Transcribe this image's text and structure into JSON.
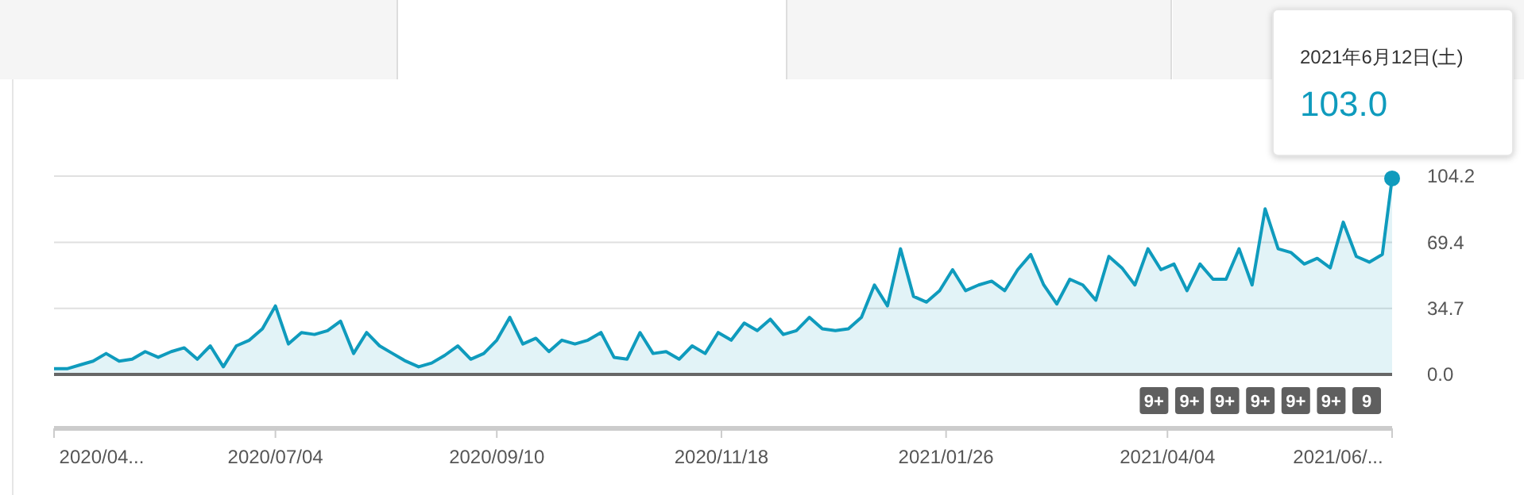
{
  "chart_data": {
    "type": "area",
    "x": [
      "2020-04-27",
      "2020-05-01",
      "2020-05-05",
      "2020-05-09",
      "2020-05-13",
      "2020-05-17",
      "2020-05-21",
      "2020-05-25",
      "2020-05-29",
      "2020-06-02",
      "2020-06-06",
      "2020-06-10",
      "2020-06-14",
      "2020-06-18",
      "2020-06-22",
      "2020-06-26",
      "2020-06-30",
      "2020-07-04",
      "2020-07-08",
      "2020-07-12",
      "2020-07-16",
      "2020-07-20",
      "2020-07-24",
      "2020-07-28",
      "2020-08-01",
      "2020-08-05",
      "2020-08-09",
      "2020-08-13",
      "2020-08-17",
      "2020-08-21",
      "2020-08-25",
      "2020-08-29",
      "2020-09-02",
      "2020-09-06",
      "2020-09-10",
      "2020-09-14",
      "2020-09-18",
      "2020-09-22",
      "2020-09-26",
      "2020-09-30",
      "2020-10-04",
      "2020-10-08",
      "2020-10-12",
      "2020-10-16",
      "2020-10-20",
      "2020-10-24",
      "2020-10-28",
      "2020-11-01",
      "2020-11-05",
      "2020-11-09",
      "2020-11-13",
      "2020-11-17",
      "2020-11-21",
      "2020-11-25",
      "2020-11-29",
      "2020-12-03",
      "2020-12-07",
      "2020-12-11",
      "2020-12-15",
      "2020-12-19",
      "2020-12-23",
      "2020-12-27",
      "2020-12-31",
      "2021-01-04",
      "2021-01-08",
      "2021-01-12",
      "2021-01-16",
      "2021-01-20",
      "2021-01-24",
      "2021-01-28",
      "2021-02-01",
      "2021-02-05",
      "2021-02-09",
      "2021-02-13",
      "2021-02-17",
      "2021-02-21",
      "2021-02-25",
      "2021-03-01",
      "2021-03-05",
      "2021-03-09",
      "2021-03-13",
      "2021-03-17",
      "2021-03-21",
      "2021-03-25",
      "2021-03-29",
      "2021-04-02",
      "2021-04-06",
      "2021-04-10",
      "2021-04-14",
      "2021-04-18",
      "2021-04-22",
      "2021-04-26",
      "2021-04-30",
      "2021-05-04",
      "2021-05-08",
      "2021-05-12",
      "2021-05-16",
      "2021-05-20",
      "2021-05-24",
      "2021-05-28",
      "2021-06-01",
      "2021-06-05",
      "2021-06-09",
      "2021-06-12"
    ],
    "series": [
      {
        "color": "#0f9bbd",
        "values": [
          3,
          3,
          5,
          7,
          11,
          7,
          8,
          12,
          9,
          12,
          14,
          8,
          15,
          4,
          15,
          18,
          24,
          36,
          16,
          22,
          21,
          23,
          28,
          11,
          22,
          15,
          11,
          7,
          4,
          6,
          10,
          15,
          8,
          11,
          18,
          30,
          16,
          19,
          12,
          18,
          16,
          18,
          22,
          9,
          8,
          22,
          11,
          12,
          8,
          15,
          11,
          22,
          18,
          27,
          23,
          29,
          21,
          23,
          30,
          24,
          23,
          24,
          30,
          47,
          36,
          66,
          41,
          38,
          44,
          55,
          44,
          47,
          49,
          44,
          55,
          63,
          47,
          37,
          50,
          47,
          39,
          62,
          56,
          47,
          66,
          55,
          58,
          44,
          58,
          50,
          50,
          66,
          47,
          87,
          66,
          64,
          58,
          61,
          56,
          80,
          62,
          59,
          63,
          103
        ]
      }
    ],
    "xlim": [
      "2020-04-27",
      "2021-06-12"
    ],
    "xticks": [
      {
        "value": "2020-04-27",
        "label": "2020/04..."
      },
      {
        "value": "2020-07-04",
        "label": "2020/07/04"
      },
      {
        "value": "2020-09-10",
        "label": "2020/09/10"
      },
      {
        "value": "2020-11-18",
        "label": "2020/11/18"
      },
      {
        "value": "2021-01-26",
        "label": "2021/01/26"
      },
      {
        "value": "2021-04-04",
        "label": "2021/04/04"
      },
      {
        "value": "2021-06-12",
        "label": "2021/06/..."
      }
    ],
    "ylim": [
      0,
      104.2
    ],
    "yticks": [
      {
        "value": 0,
        "label": "0.0"
      },
      {
        "value": 34.7,
        "label": "34.7"
      },
      {
        "value": 69.4,
        "label": "69.4"
      },
      {
        "value": 104.2,
        "label": "104.2"
      }
    ],
    "grid": "y",
    "annotations": [
      "2021年6月12日(土)",
      "103.0",
      "9+",
      "9+",
      "9+",
      "9+",
      "9+",
      "9+",
      "9"
    ]
  }
}
